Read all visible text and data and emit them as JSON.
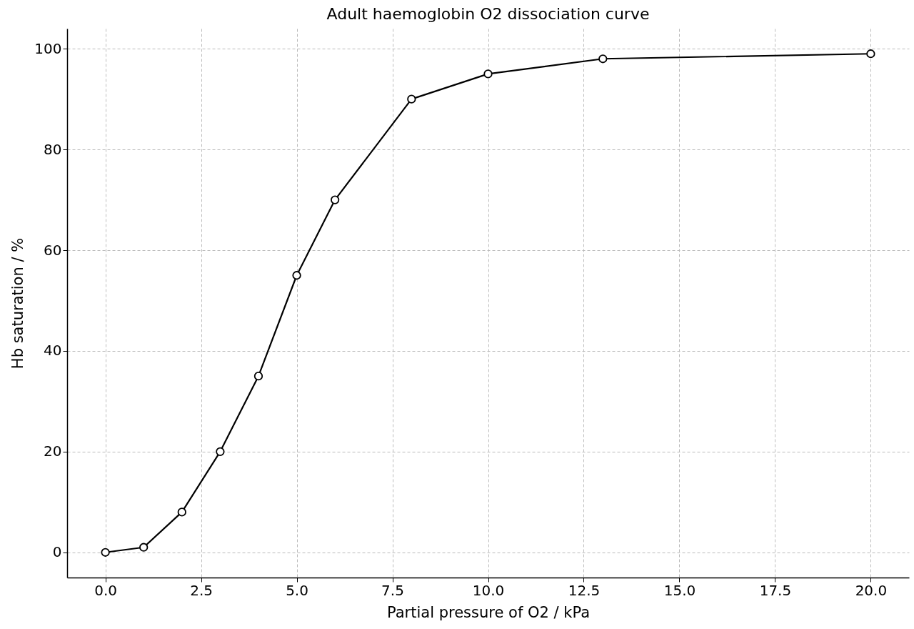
{
  "chart_data": {
    "type": "line",
    "title": "Adult haemoglobin O2 dissociation curve",
    "xlabel": "Partial pressure of O2 / kPa",
    "ylabel": "Hb saturation / %",
    "x": [
      0,
      1,
      2,
      3,
      4,
      5,
      6,
      8,
      10,
      13,
      20
    ],
    "series": [
      {
        "color": "#000000",
        "values": [
          0,
          1,
          8,
          20,
          35,
          55,
          70,
          90,
          95,
          98,
          99
        ]
      }
    ],
    "xlim": [
      -1,
      21
    ],
    "xticks": [
      {
        "value": 0,
        "label": "0.0"
      },
      {
        "value": 2.5,
        "label": "2.5"
      },
      {
        "value": 5,
        "label": "5.0"
      },
      {
        "value": 7.5,
        "label": "7.5"
      },
      {
        "value": 10,
        "label": "10.0"
      },
      {
        "value": 12.5,
        "label": "12.5"
      },
      {
        "value": 15,
        "label": "15.0"
      },
      {
        "value": 17.5,
        "label": "17.5"
      },
      {
        "value": 20,
        "label": "20.0"
      }
    ],
    "ylim": [
      -5,
      104
    ],
    "yticks": [
      0,
      20,
      40,
      60,
      80,
      100
    ],
    "grid": true,
    "marker": "circle",
    "line_style": "solid"
  }
}
